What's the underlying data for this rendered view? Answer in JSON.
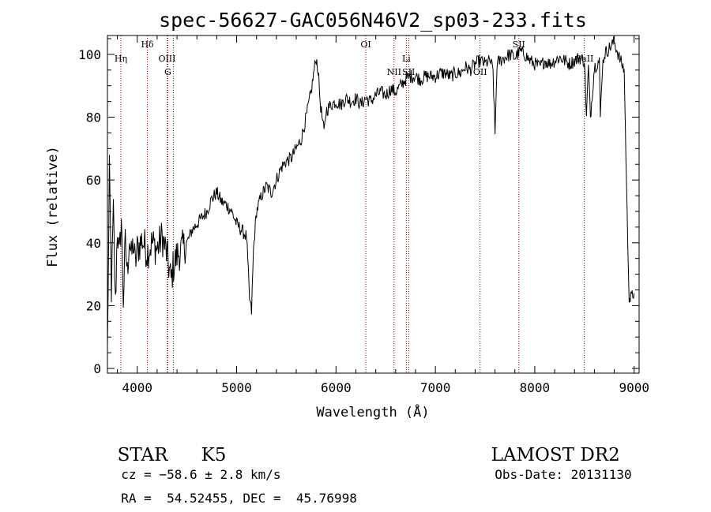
{
  "chart_data": {
    "type": "line",
    "title": "spec-56627-GAC056N46V2_sp03-233.fits",
    "xlabel": "Wavelength (Å)",
    "ylabel": "Flux (relative)",
    "xlim": [
      3700,
      9050
    ],
    "ylim": [
      -1.5,
      106
    ],
    "x_ticks": [
      4000,
      5000,
      6000,
      7000,
      8000,
      9000
    ],
    "y_ticks": [
      0,
      20,
      40,
      60,
      80,
      100
    ],
    "grid": false,
    "legend": "none",
    "line_color": "#000000",
    "marker_color": "#8b0000",
    "series": [
      {
        "x": [
          3700,
          3720,
          3740,
          3760,
          3780,
          3800,
          3820,
          3840,
          3860,
          3880,
          3900,
          3920,
          3940,
          3960,
          3980,
          4000,
          4050,
          4100,
          4150,
          4200,
          4250,
          4300,
          4340,
          4360,
          4400,
          4450,
          4500,
          4550,
          4600,
          4650,
          4700,
          4750,
          4800,
          4850,
          4900,
          4950,
          5000,
          5050,
          5100,
          5130,
          5150,
          5170,
          5200,
          5250,
          5300,
          5350,
          5400,
          5450,
          5500,
          5550,
          5600,
          5650,
          5700,
          5750,
          5780,
          5800,
          5820,
          5840,
          5860,
          5880,
          5900,
          5950,
          6000,
          6050,
          6100,
          6150,
          6200,
          6250,
          6300,
          6350,
          6400,
          6450,
          6500,
          6550,
          6600,
          6650,
          6700,
          6750,
          6800,
          6850,
          6900,
          6950,
          7000,
          7050,
          7100,
          7150,
          7200,
          7250,
          7300,
          7350,
          7400,
          7450,
          7500,
          7550,
          7580,
          7600,
          7620,
          7650,
          7700,
          7750,
          7800,
          7850,
          7900,
          7950,
          8000,
          8050,
          8100,
          8150,
          8200,
          8250,
          8300,
          8350,
          8400,
          8450,
          8500,
          8520,
          8540,
          8560,
          8600,
          8650,
          8660,
          8680,
          8700,
          8750,
          8800,
          8850,
          8900,
          8930,
          8950,
          8960,
          8980,
          9000
        ],
        "y": [
          5,
          62,
          25,
          50,
          20,
          45,
          35,
          48,
          22,
          40,
          30,
          42,
          35,
          40,
          33,
          38,
          41,
          37,
          40,
          38,
          42,
          36,
          28,
          32,
          36,
          38,
          40,
          44,
          46,
          48,
          50,
          54,
          56,
          53,
          52,
          50,
          46,
          44,
          42,
          22,
          18,
          38,
          50,
          55,
          58,
          56,
          60,
          64,
          66,
          67,
          70,
          73,
          80,
          88,
          95,
          99,
          95,
          85,
          80,
          75,
          82,
          84,
          85,
          84,
          86,
          85,
          86,
          84,
          86,
          85,
          87,
          88,
          87,
          89,
          88,
          90,
          92,
          93,
          93,
          92,
          93,
          93,
          93,
          94,
          94,
          93,
          94,
          94,
          96,
          95,
          97,
          98,
          97,
          98,
          95,
          74,
          97,
          98,
          99,
          100,
          99,
          101,
          100,
          98,
          97,
          96,
          98,
          97,
          98,
          99,
          98,
          97,
          98,
          99,
          98,
          80,
          96,
          80,
          96,
          98,
          80,
          96,
          100,
          102,
          104,
          99,
          95,
          48,
          23,
          22,
          23,
          24
        ]
      }
    ],
    "lines": [
      {
        "label": "Hη",
        "x": 3835,
        "row": 1
      },
      {
        "label": "Hδ",
        "x": 4102,
        "row": 0
      },
      {
        "label": "OIII",
        "x": 4300,
        "row": 1
      },
      {
        "label": "G",
        "x": 4307,
        "row": 2
      },
      {
        "label": "",
        "x": 4363,
        "row": 2
      },
      {
        "label": "OI",
        "x": 6300,
        "row": 0
      },
      {
        "label": "NII",
        "x": 6584,
        "row": 2
      },
      {
        "label": "Li",
        "x": 6708,
        "row": 1
      },
      {
        "label": "SII",
        "x": 6731,
        "row": 2
      },
      {
        "label": "OII",
        "x": 7450,
        "row": 2
      },
      {
        "label": "SII",
        "x": 7840,
        "row": 0
      },
      {
        "label": "CaII",
        "x": 8498,
        "row": 1
      }
    ]
  },
  "footer": {
    "object_class": "STAR",
    "subclass": "K5",
    "survey": "LAMOST DR2",
    "cz": "cz = −58.6 ± 2.8 km/s",
    "obs_date": "Obs-Date: 20131130",
    "coords": "RA =  54.52455, DEC =  45.76998"
  }
}
